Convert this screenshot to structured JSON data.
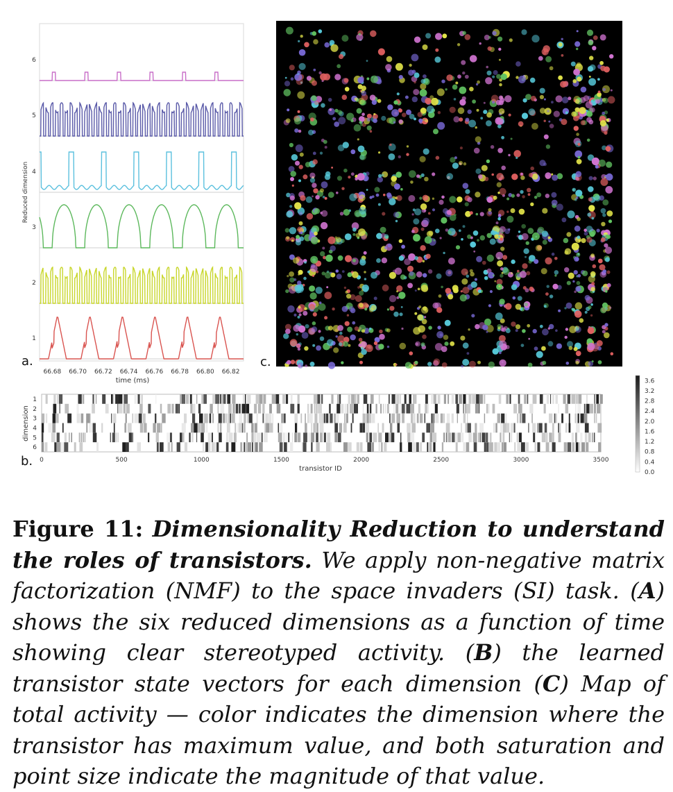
{
  "panel_labels": {
    "a": "a.",
    "b": "b.",
    "c": "c."
  },
  "chart_data": [
    {
      "panel": "a",
      "type": "line",
      "xlabel": "time (ms)",
      "ylabel": "Reduced dimension",
      "xticks": [
        "66.68",
        "66.70",
        "66.72",
        "66.74",
        "66.76",
        "66.78",
        "66.80",
        "66.82"
      ],
      "xlim": [
        66.67,
        66.83
      ],
      "yticks": [
        "1",
        "2",
        "3",
        "4",
        "5",
        "6"
      ],
      "series": [
        {
          "dimension": 1,
          "color": "#d9534f",
          "pattern": "tri",
          "period": 0.0255,
          "phase": 66.677,
          "duty": 0.55
        },
        {
          "dimension": 2,
          "color": "#c8d62b",
          "pattern": "square",
          "period": 0.0038,
          "phase": 66.671,
          "duty": 0.5
        },
        {
          "dimension": 3,
          "color": "#5cb85c",
          "pattern": "arch",
          "period": 0.0255,
          "phase": 66.68,
          "duty": 0.72
        },
        {
          "dimension": 4,
          "color": "#5bc0de",
          "pattern": "spike",
          "period": 0.0255,
          "phase": 66.693,
          "duty": 0.15
        },
        {
          "dimension": 5,
          "color": "#5a5aa8",
          "pattern": "square",
          "period": 0.0038,
          "phase": 66.671,
          "duty": 0.55
        },
        {
          "dimension": 6,
          "color": "#c86ec8",
          "pattern": "blip",
          "period": 0.0255,
          "phase": 66.68,
          "duty": 0.1
        }
      ]
    },
    {
      "panel": "b",
      "type": "heatmap",
      "xlabel": "transistor ID",
      "ylabel": "dimension",
      "xticks": [
        "0",
        "500",
        "1000",
        "1500",
        "2000",
        "2500",
        "3000",
        "3500"
      ],
      "xlim": [
        0,
        3500
      ],
      "rows": [
        "1",
        "2",
        "3",
        "4",
        "5",
        "6"
      ],
      "colorbar_ticks": [
        "3.6",
        "3.2",
        "2.8",
        "2.4",
        "2.0",
        "1.6",
        "1.2",
        "0.8",
        "0.4",
        "0.0"
      ],
      "colorbar_range": [
        0,
        3.8
      ]
    },
    {
      "panel": "c",
      "type": "scatter",
      "background": "#000000",
      "dimension_colors": [
        "#e06060",
        "#e4e64a",
        "#62c462",
        "#56c8d8",
        "#7a6ad8",
        "#d274d2"
      ]
    }
  ],
  "caption": {
    "figure_number": "Figure 11:",
    "title": "Dimensionality Reduction to understand the roles of transistors.",
    "s1": " We apply non-negative matrix factorization (NMF) to the space invaders (SI) task. (",
    "A": "A",
    "s2": ") shows the six reduced dimensions as a function of time showing clear stereotyped activity. (",
    "B": "B",
    "s3": ") the learned transistor state vectors for each dimension (",
    "C": "C",
    "s4": ") Map of total activity — color indicates the dimension where the transistor has maximum value, and both saturation and point size indicate the magnitude of that value."
  }
}
